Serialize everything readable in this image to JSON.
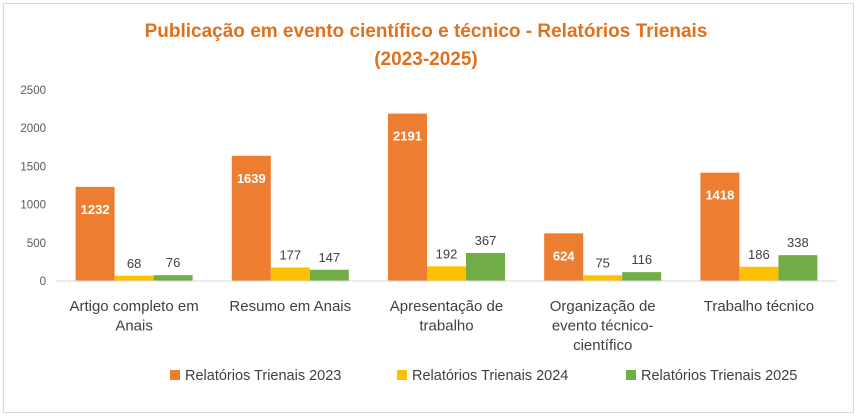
{
  "chart_data": {
    "type": "bar",
    "title": "Publicação em evento científico e técnico - Relatórios Trienais",
    "subtitle": "(2023-2025)",
    "title_color": "#e0711c",
    "categories": [
      [
        "Artigo completo em",
        "Anais"
      ],
      [
        "Resumo em Anais"
      ],
      [
        "Apresentação de",
        "trabalho"
      ],
      [
        "Organização de",
        "evento técnico-",
        "científico"
      ],
      [
        "Trabalho técnico"
      ]
    ],
    "series": [
      {
        "name": "Relatórios Trienais 2023",
        "color": "#ed7d31",
        "values": [
          1232,
          1639,
          2191,
          624,
          1418
        ]
      },
      {
        "name": "Relatórios Trienais 2024",
        "color": "#ffc000",
        "values": [
          68,
          177,
          192,
          75,
          186
        ]
      },
      {
        "name": "Relatórios Trienais 2025",
        "color": "#70ad47",
        "values": [
          76,
          147,
          367,
          116,
          338
        ]
      }
    ],
    "ylim": [
      0,
      2500
    ],
    "yticks": [
      0,
      500,
      1000,
      1500,
      2000,
      2500
    ],
    "grid": false,
    "legend_position": "bottom",
    "xlabel": "",
    "ylabel": ""
  }
}
